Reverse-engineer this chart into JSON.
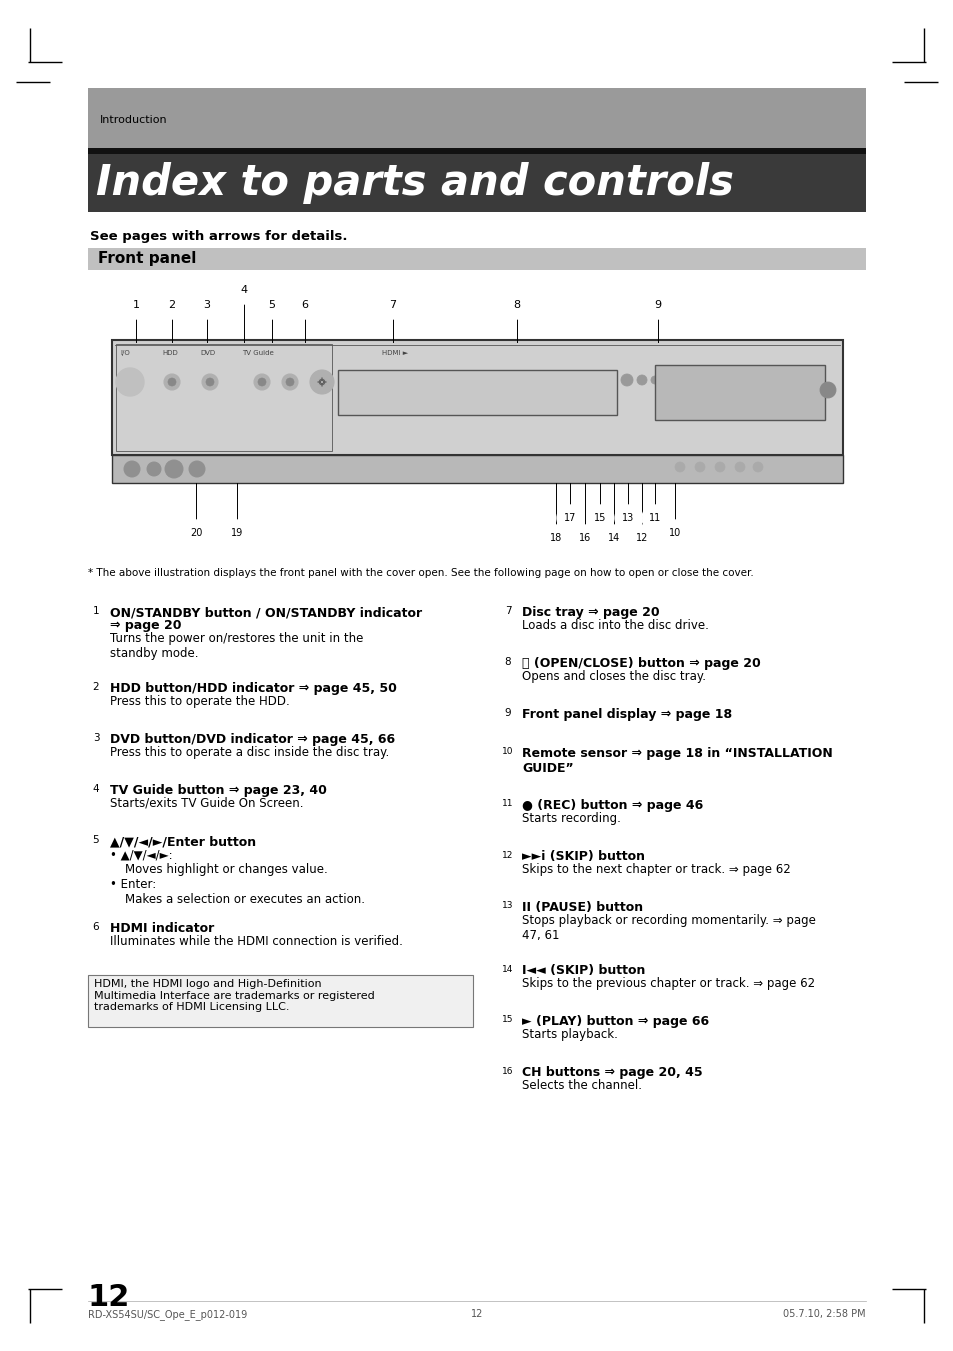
{
  "page_bg": "#ffffff",
  "header_bg": "#999999",
  "header_text": "Introduction",
  "title_bg": "#3a3a3a",
  "title_text": "Index to parts and controls",
  "subtitle": "See pages with arrows for details.",
  "section_bg": "#c8c8c8",
  "section_text": "Front panel",
  "footnote": "* The above illustration displays the front panel with the cover open. See the following page on how to open or close the cover.",
  "page_number": "12",
  "footer_left": "RD-XS54SU/SC_Ope_E_p012-019",
  "footer_center": "12",
  "footer_right": "05.7.10, 2:58 PM",
  "left_items": [
    {
      "num": "1",
      "bold1": "ON/STANDBY button / ON/STANDBY indicator",
      "bold2": "⇒ page 20",
      "body": "Turns the power on/restores the unit in the\nstandby mode."
    },
    {
      "num": "2",
      "bold1": "HDD button/HDD indicator ⇒ page 45, 50",
      "bold2": "",
      "body": "Press this to operate the HDD."
    },
    {
      "num": "3",
      "bold1": "DVD button/DVD indicator ⇒ page 45, 66",
      "bold2": "",
      "body": "Press this to operate a disc inside the disc tray."
    },
    {
      "num": "4",
      "bold1": "TV Guide button ⇒ page 23, 40",
      "bold2": "",
      "body": "Starts/exits TV Guide On Screen."
    },
    {
      "num": "5",
      "bold1": "▲/▼/◄/►/Enter button",
      "bold2": "",
      "body": "• ▲/▼/◄/►:\n    Moves highlight or changes value.\n• Enter:\n    Makes a selection or executes an action."
    },
    {
      "num": "6",
      "bold1": "HDMI indicator",
      "bold2": "",
      "body": "Illuminates while the HDMI connection is verified."
    }
  ],
  "right_items": [
    {
      "num": "7",
      "bold1": "Disc tray ⇒ page 20",
      "bold2": "",
      "body": "Loads a disc into the disc drive."
    },
    {
      "num": "8",
      "bold1": "⻊ (OPEN/CLOSE) button ⇒ page 20",
      "bold2": "",
      "body": "Opens and closes the disc tray."
    },
    {
      "num": "9",
      "bold1": "Front panel display ⇒ page 18",
      "bold2": "",
      "body": ""
    },
    {
      "num": "10",
      "bold1": "Remote sensor ⇒ page 18 in “INSTALLATION\nGUIDE”",
      "bold2": "",
      "body": ""
    },
    {
      "num": "11",
      "bold1": "● (REC) button ⇒ page 46",
      "bold2": "",
      "body": "Starts recording."
    },
    {
      "num": "12",
      "bold1": "►►i (SKIP) button",
      "bold2": "",
      "body": "Skips to the next chapter or track. ⇒ page 62"
    },
    {
      "num": "13",
      "bold1": "II (PAUSE) button",
      "bold2": "",
      "body": "Stops playback or recording momentarily. ⇒ page\n47, 61"
    },
    {
      "num": "14",
      "bold1": "I◄◄ (SKIP) button",
      "bold2": "",
      "body": "Skips to the previous chapter or track. ⇒ page 62"
    },
    {
      "num": "15",
      "bold1": "► (PLAY) button ⇒ page 66",
      "bold2": "",
      "body": "Starts playback."
    },
    {
      "num": "16",
      "bold1": "CH buttons ⇒ page 20, 45",
      "bold2": "",
      "body": "Selects the channel."
    }
  ],
  "hdmi_box": "HDMI, the HDMI logo and High-Definition\nMultimedia Interface are trademarks or registered\ntrademarks of HDMI Licensing LLC."
}
